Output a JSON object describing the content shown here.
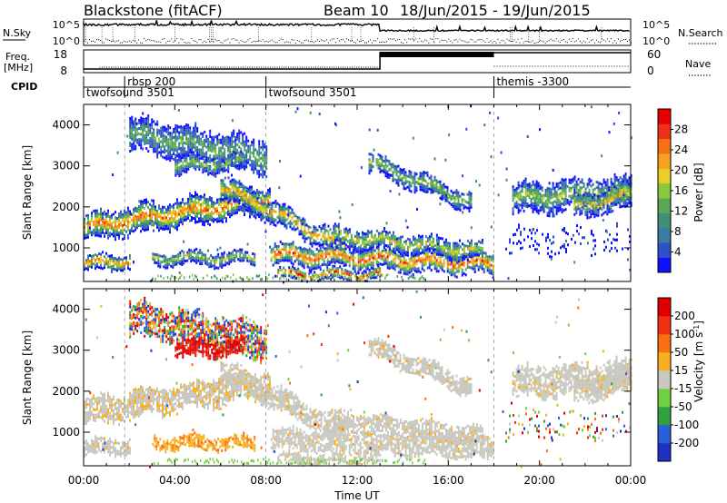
{
  "header": {
    "station": "Blackstone (fitACF)",
    "beam": "Beam 10",
    "dates": "18/Jun/2015 - 19/Jun/2015"
  },
  "noise_panel": {
    "left_label": "N.Sky",
    "right_label": "N.Search",
    "ticks": [
      "10^5",
      "10^0"
    ]
  },
  "freq_panel": {
    "left_label_line1": "Freq.",
    "left_label_line2": "[MHz]",
    "left_ticks": [
      "18",
      "8"
    ],
    "right_ticks": [
      "60",
      "0"
    ],
    "right_label": "Nave"
  },
  "cpid_panel": {
    "label": "CPID",
    "segments": [
      {
        "start_hour": 0.0,
        "text": "twofsound 3501",
        "row": 2
      },
      {
        "start_hour": 1.8,
        "text": "rbsp 200",
        "row": 1
      },
      {
        "start_hour": 8.0,
        "text": "twofsound 3501",
        "row": 2
      },
      {
        "start_hour": 18.0,
        "text": "themis -3300",
        "row": 1
      }
    ]
  },
  "chart_data": [
    {
      "type": "heatmap",
      "parameter": "Power",
      "ylabel": "Slant Range [km]",
      "xlabel": "Time UT",
      "x_range_hours": [
        0,
        24
      ],
      "ylim": [
        180,
        4500
      ],
      "yticks": [
        1000,
        2000,
        3000,
        4000
      ],
      "xtick_labels": [
        "00:00",
        "04:00",
        "08:00",
        "12:00",
        "16:00",
        "20:00",
        "00:00"
      ],
      "colorbar": {
        "label": "Power [dB]",
        "range": [
          0,
          32
        ],
        "ticks": [
          "4",
          "8",
          "12",
          "16",
          "20",
          "24",
          "28"
        ],
        "colors": [
          "#1010ff",
          "#3050c8",
          "#3c7ba0",
          "#409078",
          "#58a858",
          "#8cc83c",
          "#e8d028",
          "#f8a020",
          "#f87010",
          "#f03018",
          "#e80000"
        ]
      }
    },
    {
      "type": "heatmap",
      "parameter": "Velocity",
      "ylabel": "Slant Range [km]",
      "xlabel": "Time UT",
      "x_range_hours": [
        0,
        24
      ],
      "ylim": [
        180,
        4500
      ],
      "yticks": [
        1000,
        2000,
        3000,
        4000
      ],
      "xtick_labels": [
        "00:00",
        "04:00",
        "08:00",
        "12:00",
        "16:00",
        "20:00",
        "00:00"
      ],
      "colorbar": {
        "label": "Velocity [m s^-1]",
        "ticks": [
          "200",
          "100",
          "50",
          "15",
          "-15",
          "-50",
          "-100",
          "-200"
        ],
        "colors": [
          "#2030c0",
          "#2860d8",
          "#30a040",
          "#70d040",
          "#c8c8c0",
          "#f8b020",
          "#f87010",
          "#f03010",
          "#e00000"
        ]
      }
    }
  ],
  "time_axis": {
    "xlabel": "Time UT",
    "tick_labels": [
      "00:00",
      "04:00",
      "08:00",
      "12:00",
      "16:00",
      "20:00",
      "00:00"
    ]
  }
}
